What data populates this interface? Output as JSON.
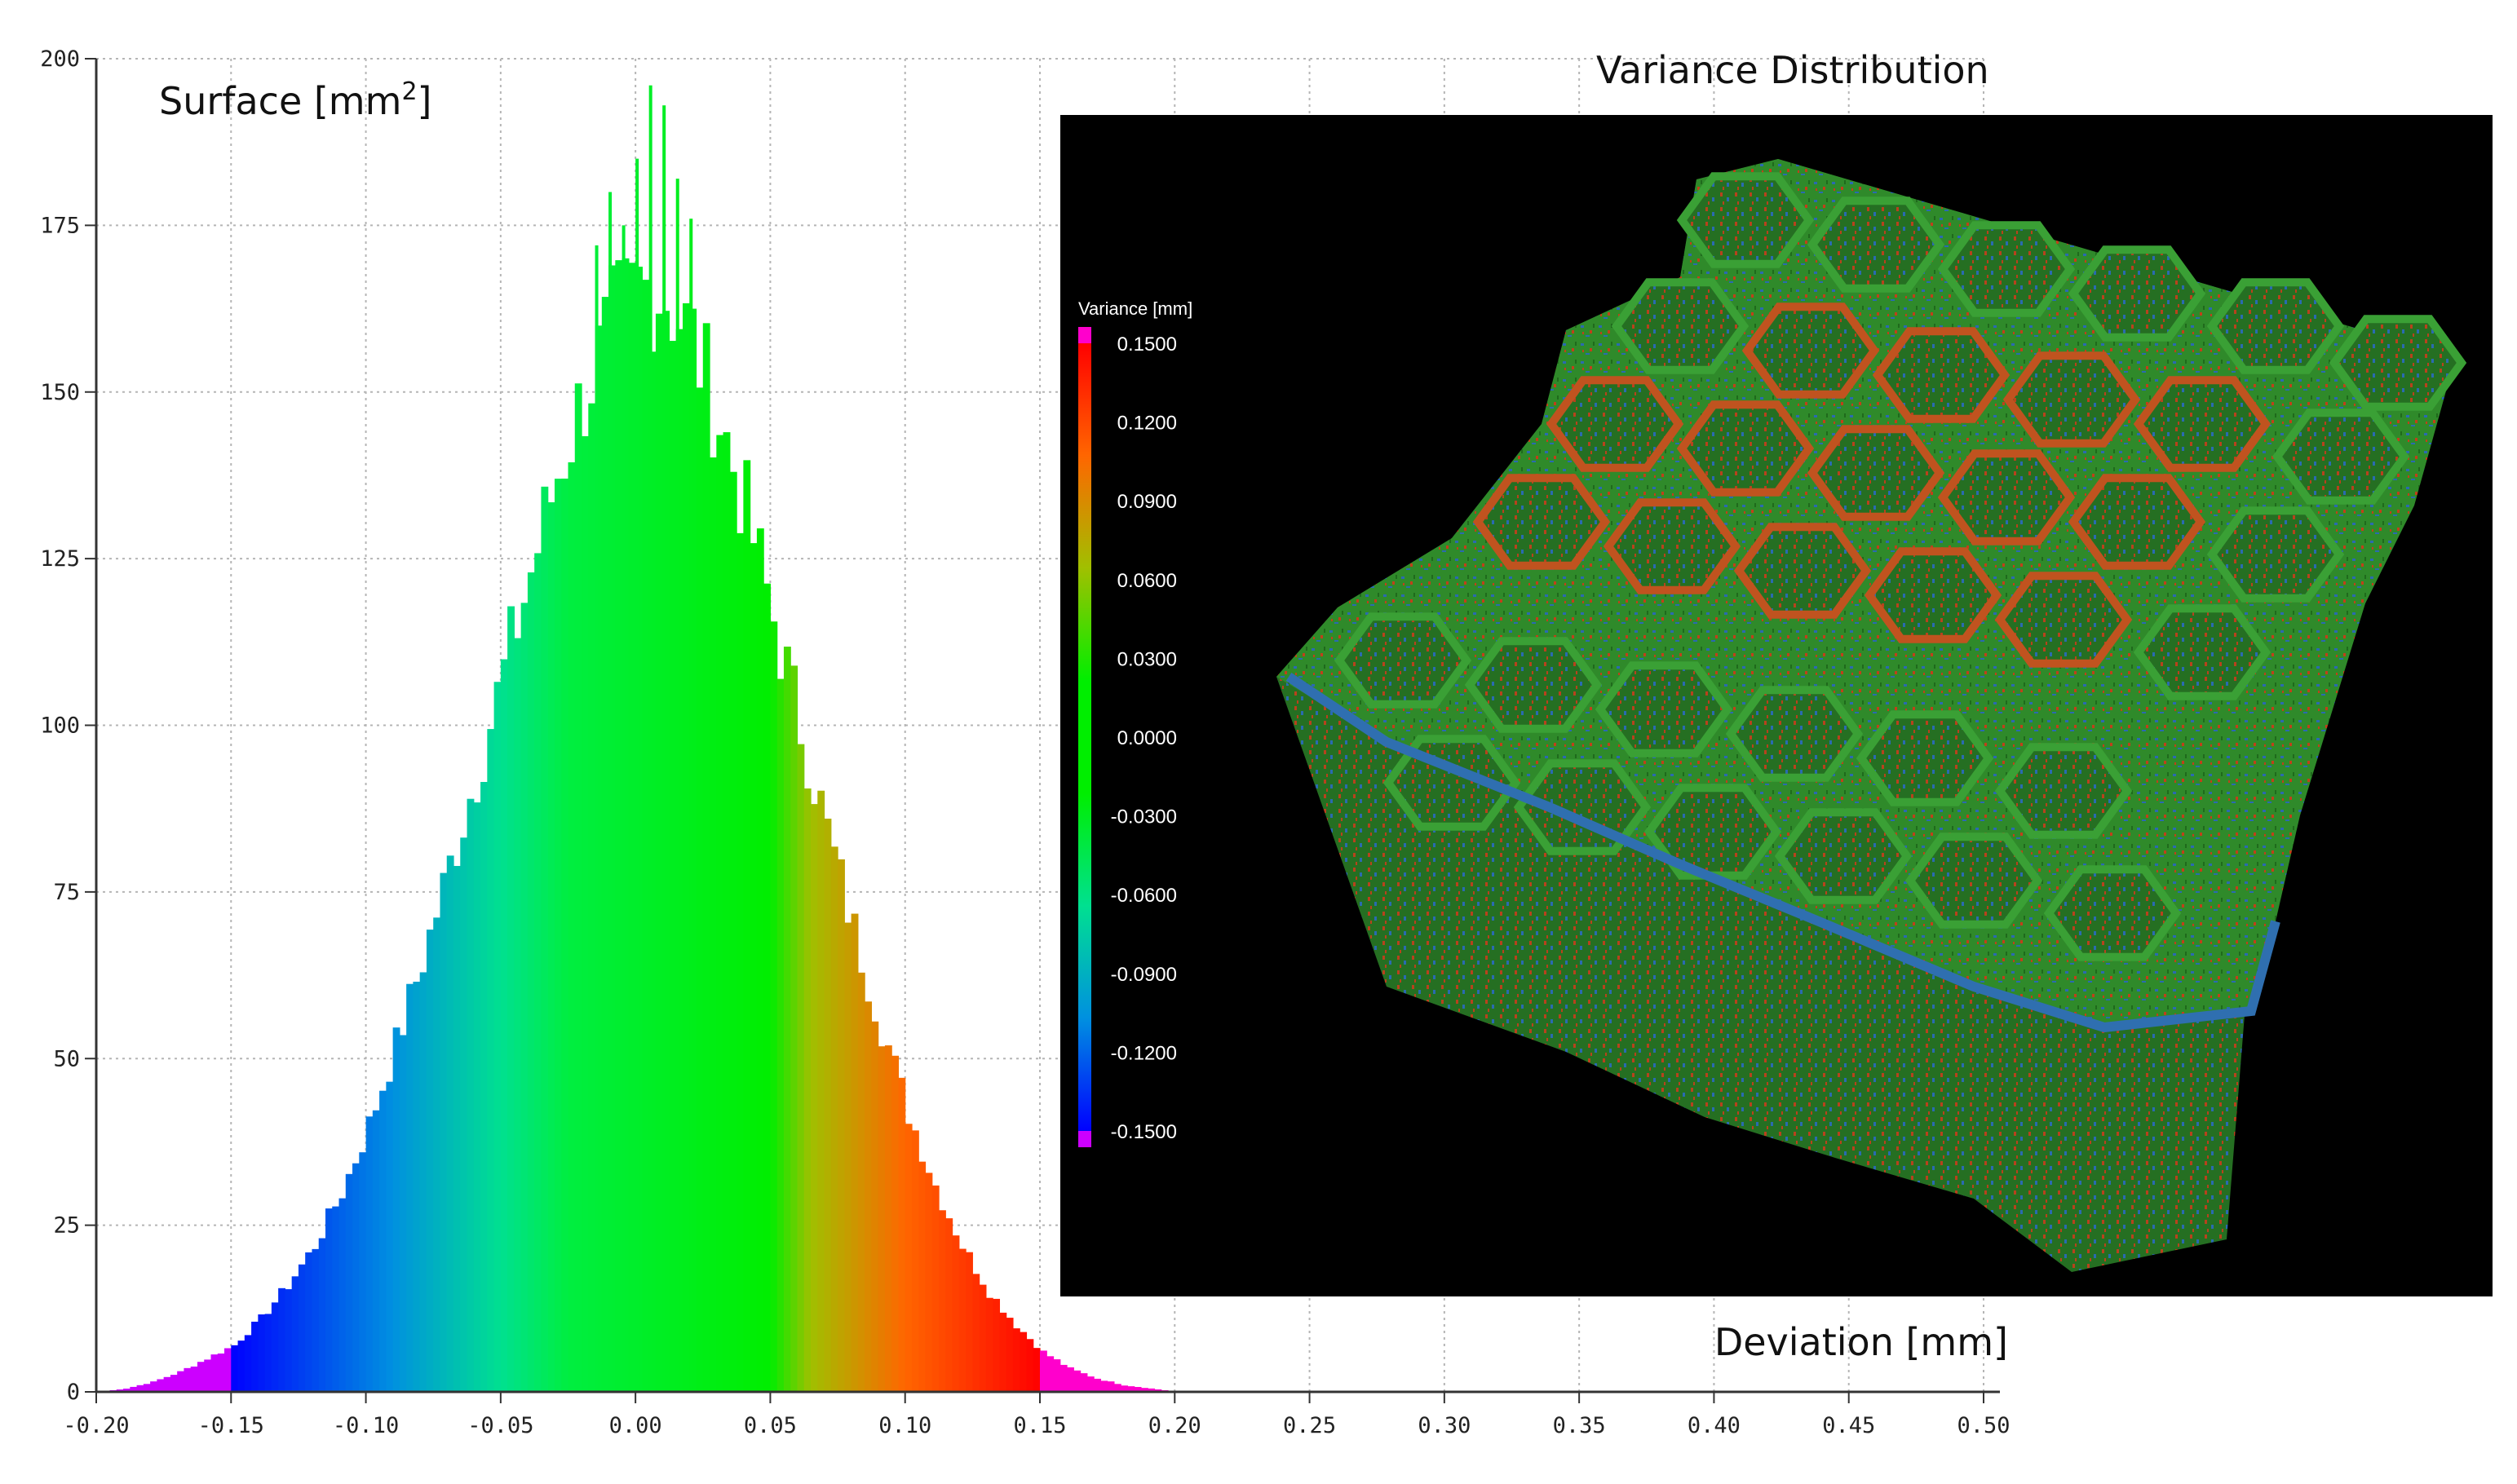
{
  "chart_data": [
    {
      "type": "bar",
      "title": "",
      "ylabel": "Surface [mm",
      "ylabel_superscript": "2",
      "ylabel_suffix": "]",
      "xlabel": "Deviation [mm]",
      "xlim": [
        -0.2,
        0.5
      ],
      "ylim": [
        0,
        200
      ],
      "grid": true,
      "x_ticks": [
        "-0.20",
        "-0.15",
        "-0.10",
        "-0.05",
        "0.00",
        "0.05",
        "0.10",
        "0.15",
        "0.20",
        "0.25",
        "0.30",
        "0.35",
        "0.40",
        "0.45",
        "0.50"
      ],
      "y_ticks": [
        "0",
        "25",
        "50",
        "75",
        "100",
        "125",
        "150",
        "175",
        "200"
      ],
      "bin_width": 0.0025,
      "x": [
        -0.19,
        -0.18,
        -0.17,
        -0.16,
        -0.15,
        -0.14,
        -0.13,
        -0.12,
        -0.11,
        -0.1,
        -0.09,
        -0.08,
        -0.07,
        -0.06,
        -0.05,
        -0.04,
        -0.03,
        -0.02,
        -0.01,
        0.0,
        0.01,
        0.02,
        0.03,
        0.04,
        0.05,
        0.06,
        0.07,
        0.08,
        0.09,
        0.1,
        0.11,
        0.12,
        0.13,
        0.14,
        0.15,
        0.16,
        0.17,
        0.18,
        0.19
      ],
      "values": [
        0.5,
        1.5,
        3,
        5,
        7,
        11,
        16,
        22,
        30,
        40,
        52,
        65,
        79,
        93,
        108,
        123,
        138,
        150,
        160,
        166,
        165,
        158,
        146,
        132,
        116,
        100,
        84,
        69,
        55,
        42,
        31,
        22,
        15,
        10,
        6,
        3.5,
        2,
        1,
        0.5
      ],
      "spikes": [
        {
          "x": -0.005,
          "y": 175
        },
        {
          "x": 0.0,
          "y": 185
        },
        {
          "x": 0.005,
          "y": 196
        },
        {
          "x": 0.01,
          "y": 193
        },
        {
          "x": -0.01,
          "y": 180
        },
        {
          "x": 0.015,
          "y": 182
        },
        {
          "x": -0.015,
          "y": 172
        },
        {
          "x": 0.02,
          "y": 176
        }
      ],
      "colormap": {
        "stops": [
          {
            "v": -0.15,
            "color": "#0000ff"
          },
          {
            "v": -0.09,
            "color": "#0090e0"
          },
          {
            "v": -0.05,
            "color": "#00e090"
          },
          {
            "v": -0.025,
            "color": "#00ee40"
          },
          {
            "v": 0.05,
            "color": "#00ee00"
          },
          {
            "v": 0.065,
            "color": "#a0c000"
          },
          {
            "v": 0.1,
            "color": "#ff6600"
          },
          {
            "v": 0.15,
            "color": "#ff0000"
          }
        ],
        "below_color": "#cc00ff",
        "above_color": "#ff00cc"
      }
    }
  ],
  "inset": {
    "title": "Variance Distribution",
    "legend_title": "Variance [mm]",
    "legend_labels": [
      "0.1500",
      "0.1200",
      "0.0900",
      "0.0600",
      "0.0300",
      "0.0000",
      "-0.0300",
      "-0.0600",
      "-0.0900",
      "-0.1200",
      "-0.1500"
    ],
    "legend_colors": {
      "top_marker": "#ff00cc",
      "bottom_marker": "#cc00ff",
      "gradient": [
        "#ff0000",
        "#ff6600",
        "#a0c000",
        "#00ee00",
        "#00ee00",
        "#00e090",
        "#0090e0",
        "#0000ff"
      ]
    },
    "background": "#000000",
    "model_description_colors": {
      "main": "#2f8a2a",
      "dark": "#1f6a1c",
      "edge": "#1c5a1a",
      "hot": "#c0401a",
      "cold": "#2a6ab0"
    }
  }
}
